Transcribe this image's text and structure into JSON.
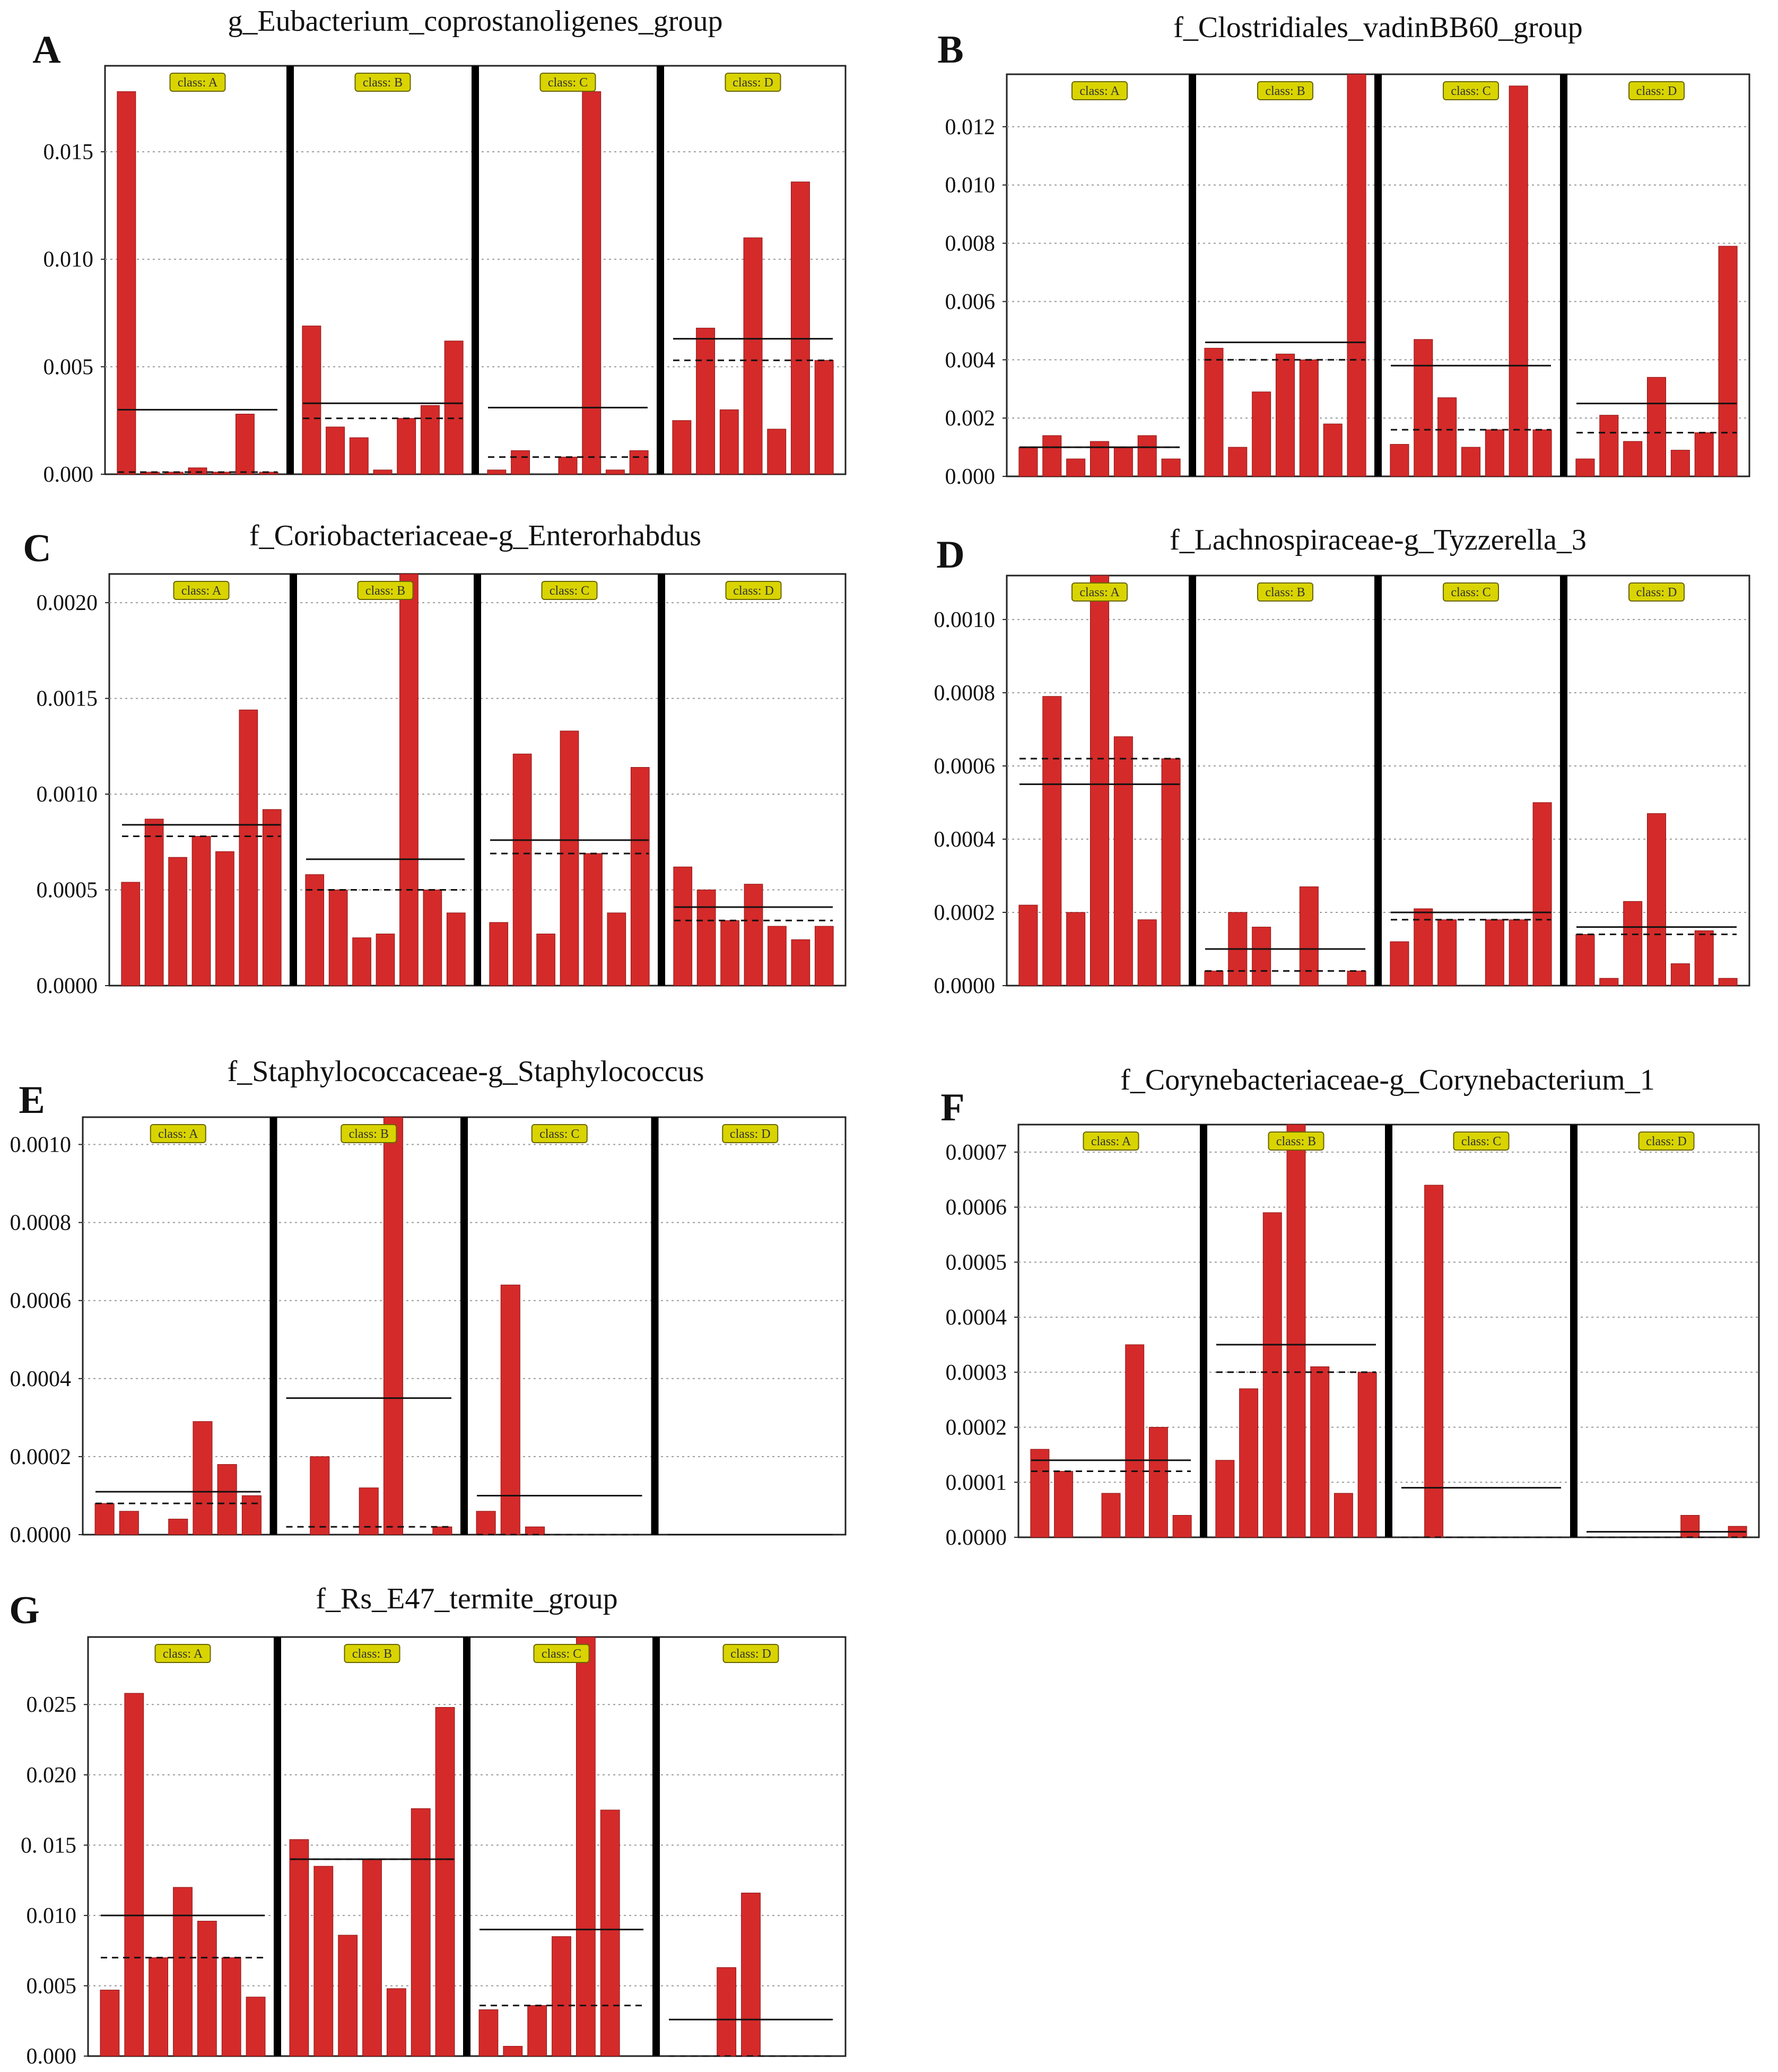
{
  "colors": {
    "bar": "#d42a2a",
    "bar_stroke": "#8e1212",
    "class_box": "#d9d400",
    "class_box_stroke": "#6a6600",
    "separator": "#000000",
    "grid": "#9a9a9a"
  },
  "chart_data": [
    {
      "type": "bar",
      "letter": "A",
      "title": "g_Eubacterium_coprostanoligenes_group",
      "ylim": [
        0,
        0.019
      ],
      "yticks": [
        0.0,
        0.005,
        0.01,
        0.015
      ],
      "ytick_labels": [
        "0.000",
        "0.005",
        "0.010",
        "0.015"
      ],
      "classes": [
        {
          "label": "class: A",
          "values": [
            0.0178,
            0.0001,
            0.0001,
            0.0003,
            0.0001,
            0.0028,
            0.0001
          ],
          "mean": 0.003,
          "median": 0.0001
        },
        {
          "label": "class: B",
          "values": [
            0.0069,
            0.0022,
            0.0017,
            0.0002,
            0.0026,
            0.0032,
            0.0062
          ],
          "mean": 0.0033,
          "median": 0.0026
        },
        {
          "label": "class: C",
          "values": [
            0.0002,
            0.0011,
            0.0,
            0.0008,
            0.0178,
            0.0002,
            0.0011
          ],
          "mean": 0.0031,
          "median": 0.0008
        },
        {
          "label": "class: D",
          "values": [
            0.0025,
            0.0068,
            0.003,
            0.011,
            0.0021,
            0.0136,
            0.0053
          ],
          "mean": 0.0063,
          "median": 0.0053
        }
      ]
    },
    {
      "type": "bar",
      "letter": "B",
      "title": "f_Clostridiales_vadinBB60_group",
      "ylim": [
        0,
        0.0138
      ],
      "yticks": [
        0.0,
        0.002,
        0.004,
        0.006,
        0.008,
        0.01,
        0.012
      ],
      "ytick_labels": [
        "0.000",
        "0.002",
        "0.004",
        "0.006",
        "0.008",
        "0.010",
        "0.012"
      ],
      "classes": [
        {
          "label": "class: A",
          "values": [
            0.001,
            0.0014,
            0.0006,
            0.0012,
            0.001,
            0.0014,
            0.0006
          ],
          "mean": 0.001,
          "median": 0.001
        },
        {
          "label": "class: B",
          "values": [
            0.0044,
            0.001,
            0.0029,
            0.0042,
            0.004,
            0.0018,
            0.0138
          ],
          "mean": 0.0046,
          "median": 0.004
        },
        {
          "label": "class: C",
          "values": [
            0.0011,
            0.0047,
            0.0027,
            0.001,
            0.0016,
            0.0134,
            0.0016
          ],
          "mean": 0.0038,
          "median": 0.0016
        },
        {
          "label": "class: D",
          "values": [
            0.0006,
            0.0021,
            0.0012,
            0.0034,
            0.0009,
            0.0015,
            0.0079
          ],
          "mean": 0.0025,
          "median": 0.0015
        }
      ]
    },
    {
      "type": "bar",
      "letter": "C",
      "title": "f_Coriobacteriaceae-g_Enterorhabdus",
      "ylim": [
        0,
        0.00215
      ],
      "yticks": [
        0.0,
        0.0005,
        0.001,
        0.0015,
        0.002
      ],
      "ytick_labels": [
        "0.0000",
        "0.0005",
        "0.0010",
        "0.0015",
        "0.0020"
      ],
      "classes": [
        {
          "label": "class: A",
          "values": [
            0.00054,
            0.00087,
            0.00067,
            0.00078,
            0.0007,
            0.00144,
            0.00092
          ],
          "mean": 0.00084,
          "median": 0.00078
        },
        {
          "label": "class: B",
          "values": [
            0.00058,
            0.0005,
            0.00025,
            0.00027,
            0.00215,
            0.0005,
            0.00038
          ],
          "mean": 0.00066,
          "median": 0.0005
        },
        {
          "label": "class: C",
          "values": [
            0.00033,
            0.00121,
            0.00027,
            0.00133,
            0.00069,
            0.00038,
            0.00114
          ],
          "mean": 0.00076,
          "median": 0.00069
        },
        {
          "label": "class: D",
          "values": [
            0.00062,
            0.0005,
            0.00034,
            0.00053,
            0.00031,
            0.00024,
            0.00031
          ],
          "mean": 0.00041,
          "median": 0.00034
        }
      ]
    },
    {
      "type": "bar",
      "letter": "D",
      "title": "f_Lachnospiraceae-g_Tyzzerella_3",
      "ylim": [
        0,
        0.00112
      ],
      "yticks": [
        0.0,
        0.0002,
        0.0004,
        0.0006,
        0.0008,
        0.001
      ],
      "ytick_labels": [
        "0.0000",
        "0.0002",
        "0.0004",
        "0.0006",
        "0.0008",
        "0.0010"
      ],
      "classes": [
        {
          "label": "class: A",
          "values": [
            0.00022,
            0.00079,
            0.0002,
            0.00112,
            0.00068,
            0.00018,
            0.00062
          ],
          "mean": 0.00055,
          "median": 0.00062
        },
        {
          "label": "class: B",
          "values": [
            4e-05,
            0.0002,
            0.00016,
            0.0,
            0.00027,
            0.0,
            4e-05
          ],
          "mean": 0.0001,
          "median": 4e-05
        },
        {
          "label": "class: C",
          "values": [
            0.00012,
            0.00021,
            0.00018,
            0.0,
            0.00018,
            0.00018,
            0.0005
          ],
          "mean": 0.0002,
          "median": 0.00018
        },
        {
          "label": "class: D",
          "values": [
            0.00014,
            2e-05,
            0.00023,
            0.00047,
            6e-05,
            0.00015,
            2e-05
          ],
          "mean": 0.00016,
          "median": 0.00014
        }
      ]
    },
    {
      "type": "bar",
      "letter": "E",
      "title": "f_Staphylococcaceae-g_Staphylococcus",
      "ylim": [
        0,
        0.00107
      ],
      "yticks": [
        0.0,
        0.0002,
        0.0004,
        0.0006,
        0.0008,
        0.001
      ],
      "ytick_labels": [
        "0.0000",
        "0.0002",
        "0.0004",
        "0.0006",
        "0.0008",
        "0.0010"
      ],
      "classes": [
        {
          "label": "class: A",
          "values": [
            8e-05,
            6e-05,
            0.0,
            4e-05,
            0.00029,
            0.00018,
            0.0001
          ],
          "mean": 0.00011,
          "median": 8e-05
        },
        {
          "label": "class: B",
          "values": [
            0.0,
            0.0002,
            0.0,
            0.00012,
            0.00107,
            0.0,
            2e-05
          ],
          "mean": 0.00035,
          "median": 2e-05
        },
        {
          "label": "class: C",
          "values": [
            6e-05,
            0.00064,
            2e-05,
            0.0,
            0.0,
            0.0,
            0.0
          ],
          "mean": 0.0001,
          "median": 0.0
        },
        {
          "label": "class: D",
          "values": [
            0.0,
            0.0,
            0.0,
            0.0,
            0.0,
            0.0,
            0.0
          ],
          "mean": 0.0,
          "median": 0.0
        }
      ]
    },
    {
      "type": "bar",
      "letter": "F",
      "title": "f_Corynebacteriaceae-g_Corynebacterium_1",
      "ylim": [
        0,
        0.00075
      ],
      "yticks": [
        0.0,
        0.0001,
        0.0002,
        0.0003,
        0.0004,
        0.0005,
        0.0006,
        0.0007
      ],
      "ytick_labels": [
        "0.0000",
        "0.0001",
        "0.0002",
        "0.0003",
        "0.0004",
        "0.0005",
        "0.0006",
        "0.0007"
      ],
      "classes": [
        {
          "label": "class: A",
          "values": [
            0.00016,
            0.00012,
            0.0,
            8e-05,
            0.00035,
            0.0002,
            4e-05
          ],
          "mean": 0.00014,
          "median": 0.00012
        },
        {
          "label": "class: B",
          "values": [
            0.00014,
            0.00027,
            0.00059,
            0.00075,
            0.00031,
            8e-05,
            0.0003
          ],
          "mean": 0.00035,
          "median": 0.0003
        },
        {
          "label": "class: C",
          "values": [
            0.0,
            0.00064,
            0.0,
            0.0,
            0.0,
            0.0,
            0.0
          ],
          "mean": 9e-05,
          "median": 0.0
        },
        {
          "label": "class: D",
          "values": [
            0.0,
            0.0,
            0.0,
            0.0,
            4e-05,
            0.0,
            2e-05
          ],
          "mean": 1e-05,
          "median": 0.0
        }
      ]
    },
    {
      "type": "bar",
      "letter": "G",
      "title": "f_Rs_E47_termite_group",
      "ylim": [
        0,
        0.0298
      ],
      "yticks": [
        0.0,
        0.005,
        0.01,
        0.015,
        0.02,
        0.025
      ],
      "ytick_labels": [
        "0.000",
        "0.005",
        "0.010",
        "0. 015",
        "0.020",
        "0.025"
      ],
      "classes": [
        {
          "label": "class: A",
          "values": [
            0.0047,
            0.0258,
            0.007,
            0.012,
            0.0096,
            0.007,
            0.0042
          ],
          "mean": 0.01,
          "median": 0.007
        },
        {
          "label": "class: B",
          "values": [
            0.0154,
            0.0135,
            0.0086,
            0.014,
            0.0048,
            0.0176,
            0.0248
          ],
          "mean": 0.014,
          "median": 0.014
        },
        {
          "label": "class: C",
          "values": [
            0.0033,
            0.0007,
            0.0036,
            0.0085,
            0.0298,
            0.0175,
            0.0
          ],
          "mean": 0.009,
          "median": 0.0036
        },
        {
          "label": "class: D",
          "values": [
            0.0,
            0.0,
            0.0063,
            0.0116,
            0.0,
            0.0,
            0.0
          ],
          "mean": 0.0026,
          "median": 0.0
        }
      ]
    }
  ]
}
